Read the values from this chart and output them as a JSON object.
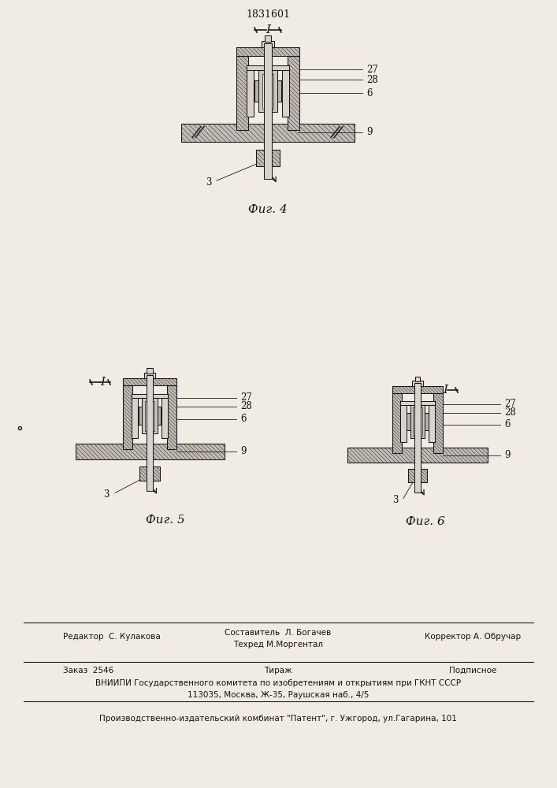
{
  "patent_number": "1831601",
  "background_color": "#f0ece4",
  "fig4_label": "Фиг. 4",
  "fig5_label": "Фиг. 5",
  "fig6_label": "Фиг. 6",
  "label_I": "I",
  "footer_line1_left": "Редактор  С. Кулакова",
  "footer_line1_center_top": "Составитель  Л. Богачев",
  "footer_line1_center_bot": "Техред М.Моргентал",
  "footer_line1_right": "Корректор А. Обручар",
  "footer_order": "Заказ  2546",
  "footer_tirazh": "Тираж",
  "footer_podpisnoe": "Подписное",
  "footer_vniipи": "ВНИИПИ Государственного комитета по изобретениям и открытиям при ГКНТ СССР",
  "footer_address": "113035, Москва, Ж-35, Раушская наб., 4/5",
  "footer_publisher": "Производственно-издательский комбинат \"Патент\", г. Ужгород, ул.Гагарина, 101",
  "hatch_color": "#444444",
  "line_color": "#1a1a1a",
  "text_color": "#111111"
}
